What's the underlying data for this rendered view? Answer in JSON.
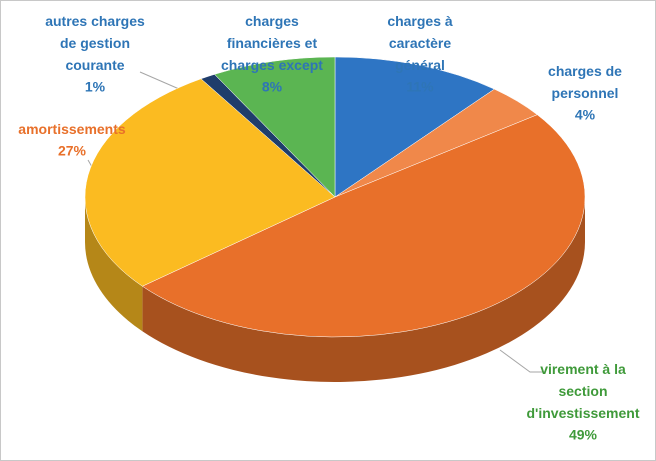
{
  "chart_data": {
    "type": "pie3d",
    "categories": [
      "charges à\ncaractère\ngénéral",
      "charges de\npersonnel",
      "virement à la\nsection\nd'investissement",
      "amortissements",
      "autres charges\nde gestion\ncourante",
      "charges\nfinancières et\ncharges except"
    ],
    "values": [
      11,
      4,
      49,
      27,
      1,
      8
    ],
    "value_labels": [
      "11%",
      "4%",
      "49%",
      "27%",
      "1%",
      "8%"
    ],
    "colors": [
      "#2e75c4",
      "#f0884a",
      "#e8702a",
      "#fbbb21",
      "#1f3d6b",
      "#5bb552"
    ],
    "label_colors": [
      "#2e75b6",
      "#2e75b6",
      "#3f9a3a",
      "#e8702a",
      "#2e75b6",
      "#2e75b6"
    ]
  }
}
